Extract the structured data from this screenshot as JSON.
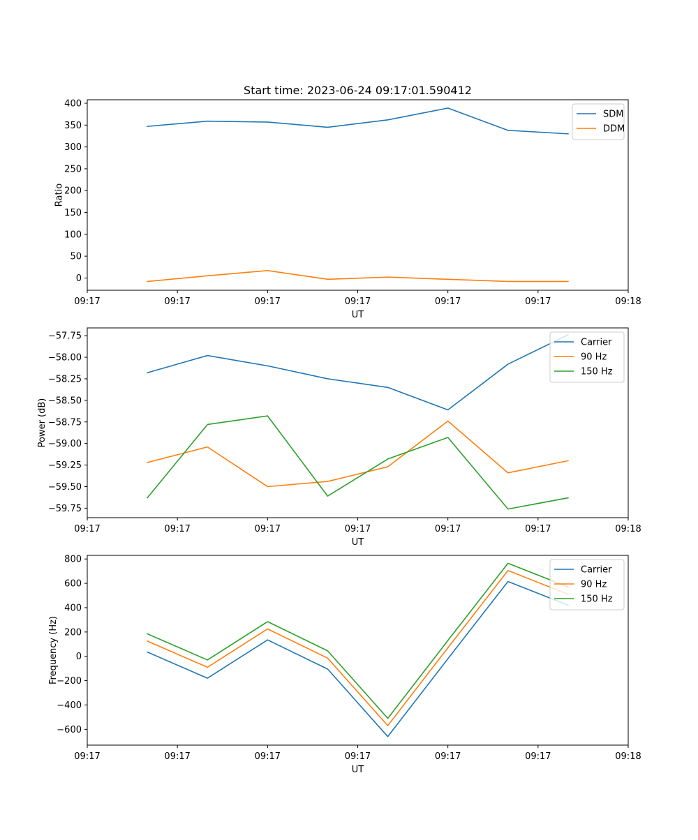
{
  "figure": {
    "title": "Start time: 2023-06-24 09:17:01.590412"
  },
  "chart_data": [
    {
      "type": "line",
      "xlabel": "UT",
      "ylabel": "Ratio",
      "x": [
        1,
        2,
        3,
        4,
        5,
        6,
        7,
        8
      ],
      "xlim": [
        0,
        9
      ],
      "xticks": [
        {
          "value": 0,
          "label": "09:17"
        },
        {
          "value": 1.5,
          "label": "09:17"
        },
        {
          "value": 3,
          "label": "09:17"
        },
        {
          "value": 4.5,
          "label": "09:17"
        },
        {
          "value": 6,
          "label": "09:17"
        },
        {
          "value": 7.5,
          "label": "09:17"
        },
        {
          "value": 9,
          "label": "09:18"
        }
      ],
      "ylim": [
        -28,
        408
      ],
      "yticks": [
        {
          "value": 0,
          "label": "0"
        },
        {
          "value": 50,
          "label": "50"
        },
        {
          "value": 100,
          "label": "100"
        },
        {
          "value": 150,
          "label": "150"
        },
        {
          "value": 200,
          "label": "200"
        },
        {
          "value": 250,
          "label": "250"
        },
        {
          "value": 300,
          "label": "300"
        },
        {
          "value": 350,
          "label": "350"
        },
        {
          "value": 400,
          "label": "400"
        }
      ],
      "grid": false,
      "legend": "top-right",
      "series": [
        {
          "name": "SDM",
          "color": "#1f77b4",
          "values": [
            347,
            359,
            357,
            345,
            362,
            389,
            338,
            330
          ]
        },
        {
          "name": "DDM",
          "color": "#ff7f0e",
          "values": [
            -8,
            5,
            17,
            -3,
            2,
            -3,
            -8,
            -8
          ]
        }
      ]
    },
    {
      "type": "line",
      "xlabel": "UT",
      "ylabel": "Power (dB)",
      "x": [
        1,
        2,
        3,
        4,
        5,
        6,
        7,
        8
      ],
      "xlim": [
        0,
        9
      ],
      "xticks": [
        {
          "value": 0,
          "label": "09:17"
        },
        {
          "value": 1.5,
          "label": "09:17"
        },
        {
          "value": 3,
          "label": "09:17"
        },
        {
          "value": 4.5,
          "label": "09:17"
        },
        {
          "value": 6,
          "label": "09:17"
        },
        {
          "value": 7.5,
          "label": "09:17"
        },
        {
          "value": 9,
          "label": "09:18"
        }
      ],
      "ylim": [
        -59.86,
        -57.66
      ],
      "yticks": [
        {
          "value": -59.75,
          "label": "−59.75"
        },
        {
          "value": -59.5,
          "label": "−59.50"
        },
        {
          "value": -59.25,
          "label": "−59.25"
        },
        {
          "value": -59.0,
          "label": "−59.00"
        },
        {
          "value": -58.75,
          "label": "−58.75"
        },
        {
          "value": -58.5,
          "label": "−58.50"
        },
        {
          "value": -58.25,
          "label": "−58.25"
        },
        {
          "value": -58.0,
          "label": "−58.00"
        },
        {
          "value": -57.75,
          "label": "−57.75"
        }
      ],
      "grid": false,
      "legend": "top-right",
      "series": [
        {
          "name": "Carrier",
          "color": "#1f77b4",
          "values": [
            -58.18,
            -57.98,
            -58.1,
            -58.25,
            -58.35,
            -58.61,
            -58.08,
            -57.74
          ]
        },
        {
          "name": "90 Hz",
          "color": "#ff7f0e",
          "values": [
            -59.22,
            -59.04,
            -59.5,
            -59.44,
            -59.27,
            -58.74,
            -59.34,
            -59.2
          ]
        },
        {
          "name": "150 Hz",
          "color": "#2ca02c",
          "values": [
            -59.63,
            -58.78,
            -58.68,
            -59.61,
            -59.18,
            -58.93,
            -59.76,
            -59.63
          ]
        }
      ]
    },
    {
      "type": "line",
      "xlabel": "UT",
      "ylabel": "Frequency (Hz)",
      "x": [
        1,
        2,
        3,
        4,
        5,
        6,
        7,
        8
      ],
      "xlim": [
        0,
        9
      ],
      "xticks": [
        {
          "value": 0,
          "label": "09:17"
        },
        {
          "value": 1.5,
          "label": "09:17"
        },
        {
          "value": 3,
          "label": "09:17"
        },
        {
          "value": 4.5,
          "label": "09:17"
        },
        {
          "value": 6,
          "label": "09:17"
        },
        {
          "value": 7.5,
          "label": "09:17"
        },
        {
          "value": 9,
          "label": "09:18"
        }
      ],
      "ylim": [
        -730,
        830
      ],
      "yticks": [
        {
          "value": -600,
          "label": "−600"
        },
        {
          "value": -400,
          "label": "−400"
        },
        {
          "value": -200,
          "label": "−200"
        },
        {
          "value": 0,
          "label": "0"
        },
        {
          "value": 200,
          "label": "200"
        },
        {
          "value": 400,
          "label": "400"
        },
        {
          "value": 600,
          "label": "600"
        },
        {
          "value": 800,
          "label": "800"
        }
      ],
      "grid": false,
      "legend": "top-right",
      "series": [
        {
          "name": "Carrier",
          "color": "#1f77b4",
          "values": [
            35,
            -180,
            135,
            -105,
            -660,
            -20,
            615,
            420
          ]
        },
        {
          "name": "90 Hz",
          "color": "#ff7f0e",
          "values": [
            125,
            -90,
            225,
            -15,
            -570,
            70,
            705,
            510
          ]
        },
        {
          "name": "150 Hz",
          "color": "#2ca02c",
          "values": [
            185,
            -30,
            285,
            45,
            -510,
            130,
            765,
            570
          ]
        }
      ]
    }
  ]
}
